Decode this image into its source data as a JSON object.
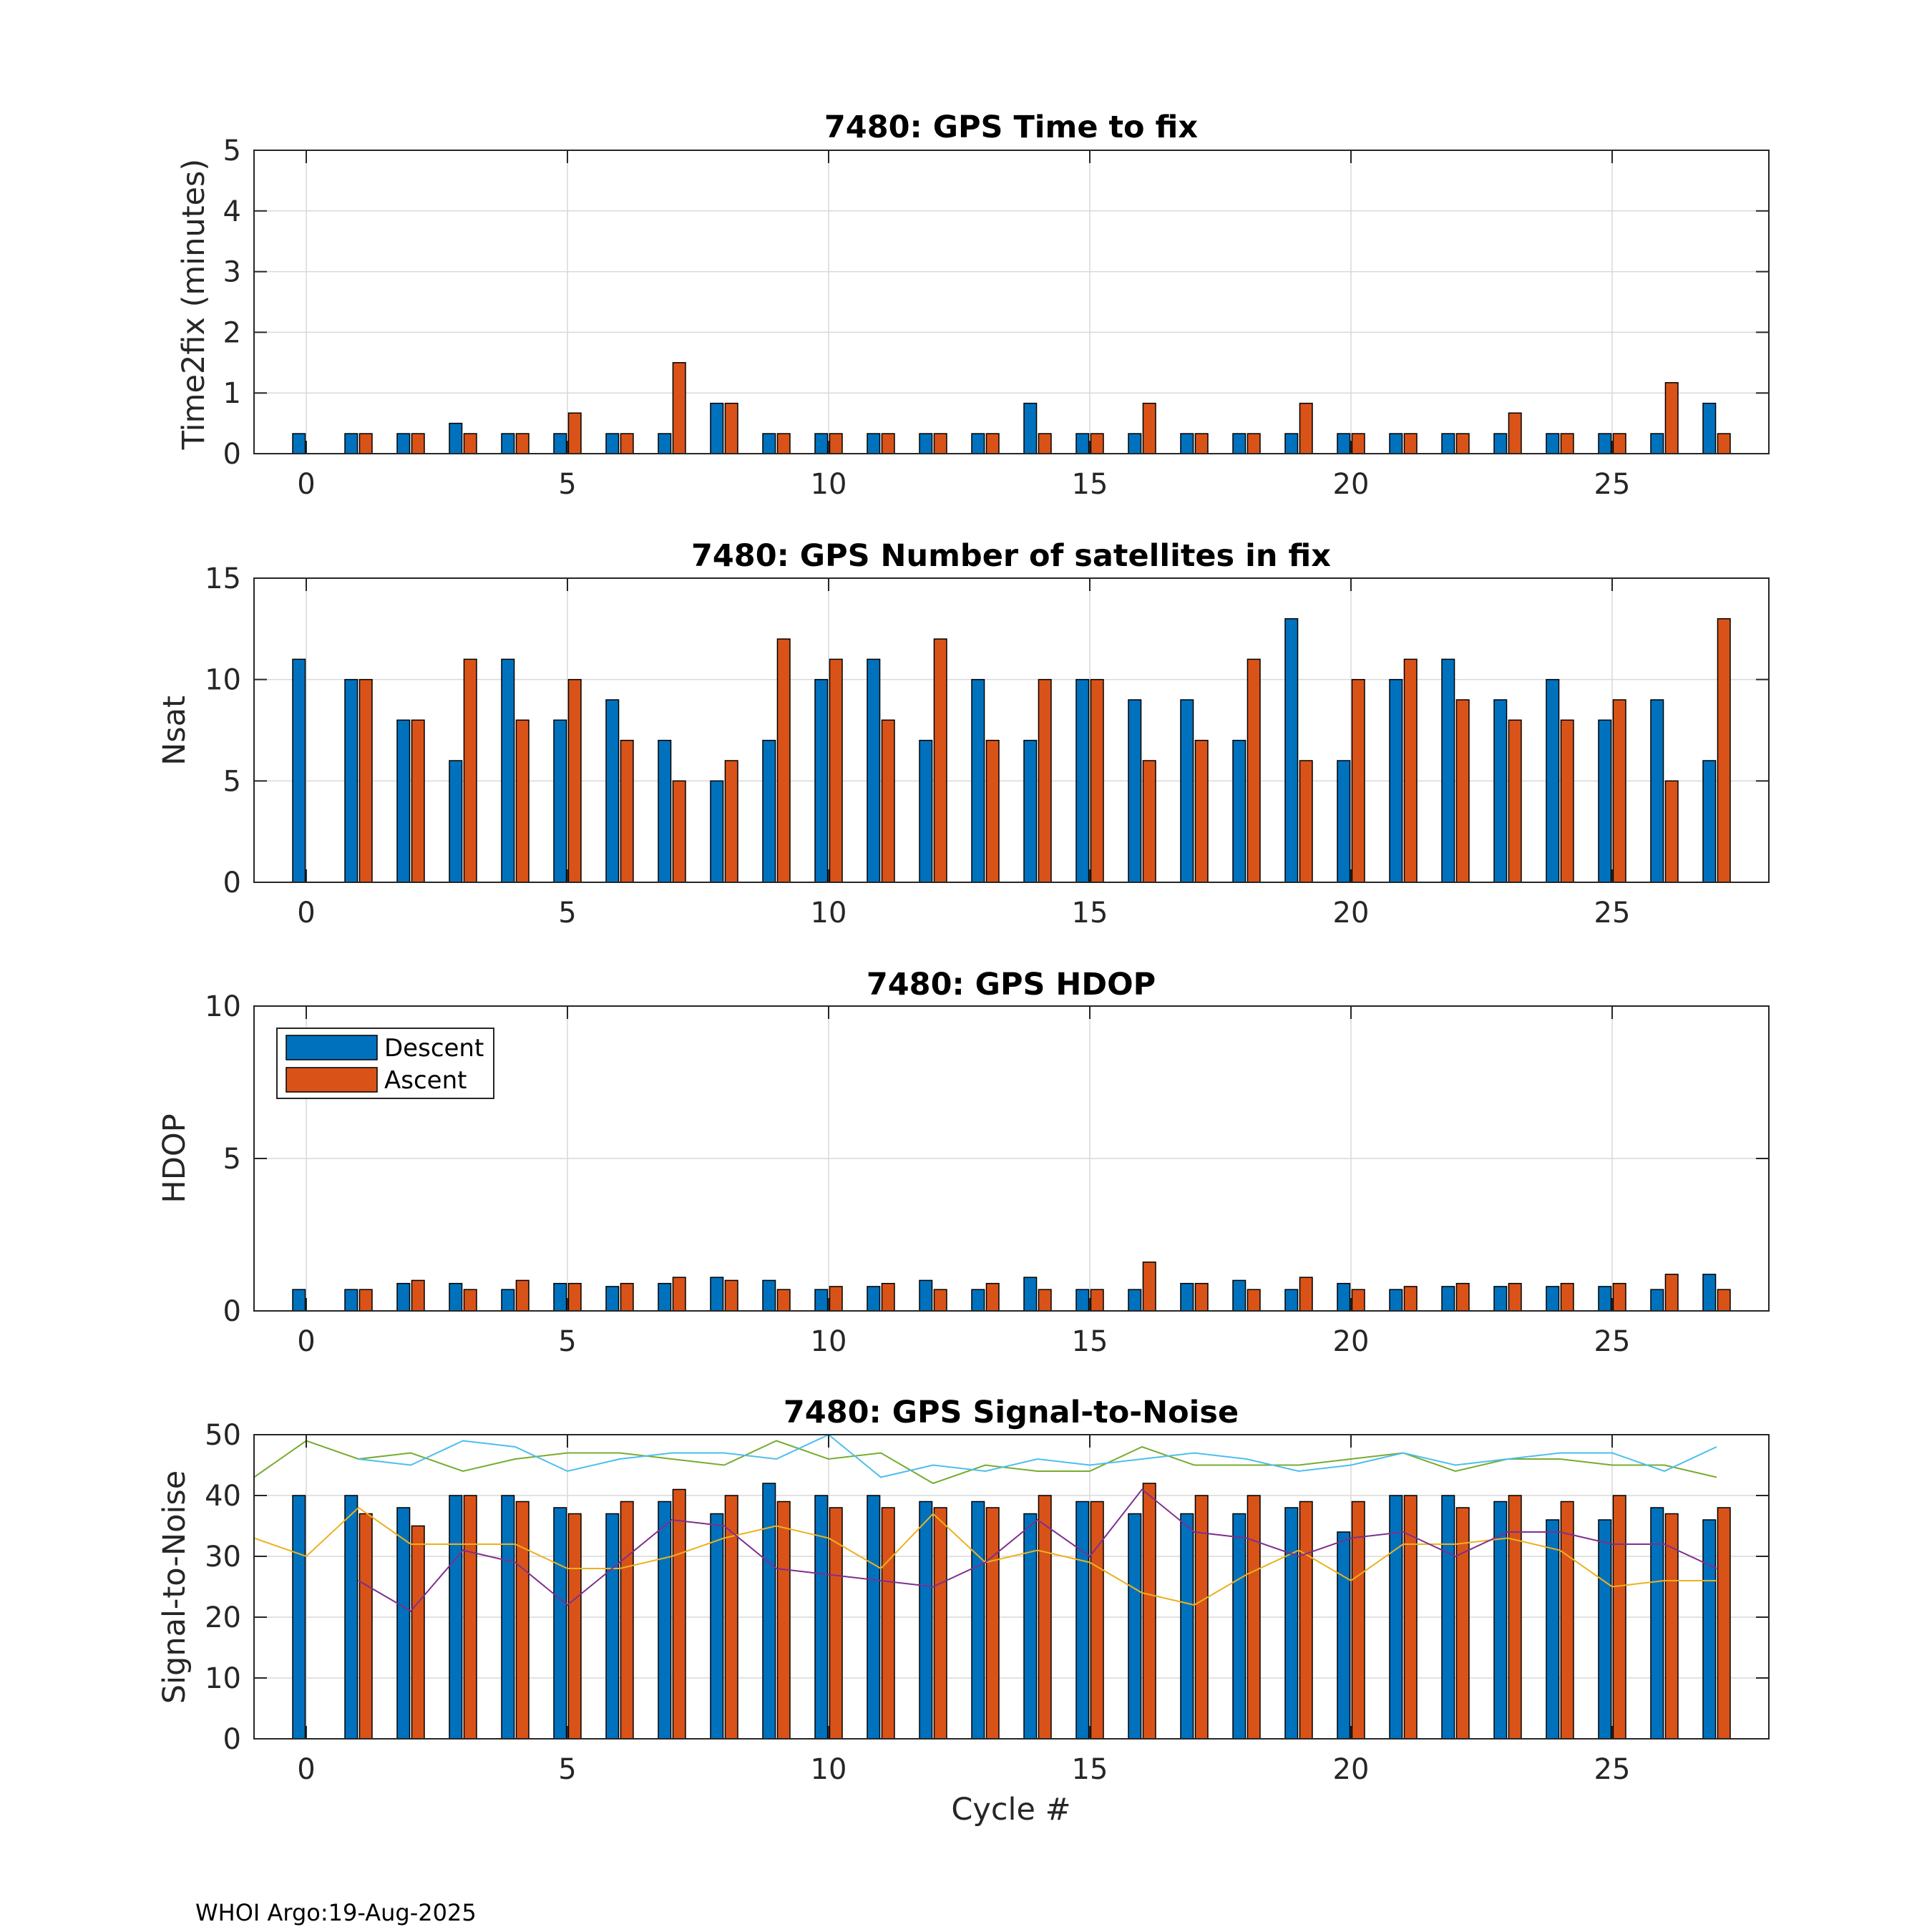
{
  "footer": "WHOI Argo:19-Aug-2025",
  "legend": {
    "descent": "Descent",
    "ascent": "Ascent"
  },
  "colors": {
    "descent": "#0072BD",
    "ascent": "#D95319",
    "snr_lines": [
      "#77AC30",
      "#4DBEEE",
      "#EDB120",
      "#7E2F8E"
    ]
  },
  "chart_data": [
    {
      "type": "bar",
      "title": "7480: GPS Time to fix",
      "xlabel": "",
      "ylabel": "Time2fix (minutes)",
      "xlim": [
        -1,
        28
      ],
      "ylim": [
        0,
        5
      ],
      "xticks": [
        0,
        5,
        10,
        15,
        20,
        25
      ],
      "yticks": [
        0,
        1,
        2,
        3,
        4,
        5
      ],
      "grid": true,
      "categories": [
        0,
        1,
        2,
        3,
        4,
        5,
        6,
        7,
        8,
        9,
        10,
        11,
        12,
        13,
        14,
        15,
        16,
        17,
        18,
        19,
        20,
        21,
        22,
        23,
        24,
        25,
        26,
        27
      ],
      "series": [
        {
          "name": "Descent",
          "values": [
            0.33,
            0.33,
            0.33,
            0.5,
            0.33,
            0.33,
            0.33,
            0.33,
            0.83,
            0.33,
            0.33,
            0.33,
            0.33,
            0.33,
            0.83,
            0.33,
            0.33,
            0.33,
            0.33,
            0.33,
            0.33,
            0.33,
            0.33,
            0.33,
            0.33,
            0.33,
            0.33,
            0.83
          ]
        },
        {
          "name": "Ascent",
          "values": [
            0,
            0.33,
            0.33,
            0.33,
            0.33,
            0.67,
            0.33,
            1.5,
            0.83,
            0.33,
            0.33,
            0.33,
            0.33,
            0.33,
            0.33,
            0.33,
            0.83,
            0.33,
            0.33,
            0.83,
            0.33,
            0.33,
            0.33,
            0.67,
            0.33,
            0.33,
            1.17,
            0.33
          ]
        }
      ]
    },
    {
      "type": "bar",
      "title": "7480: GPS Number of satellites in fix",
      "xlabel": "",
      "ylabel": "Nsat",
      "xlim": [
        -1,
        28
      ],
      "ylim": [
        0,
        15
      ],
      "xticks": [
        0,
        5,
        10,
        15,
        20,
        25
      ],
      "yticks": [
        0,
        5,
        10,
        15
      ],
      "grid": true,
      "categories": [
        0,
        1,
        2,
        3,
        4,
        5,
        6,
        7,
        8,
        9,
        10,
        11,
        12,
        13,
        14,
        15,
        16,
        17,
        18,
        19,
        20,
        21,
        22,
        23,
        24,
        25,
        26,
        27
      ],
      "series": [
        {
          "name": "Descent",
          "values": [
            11,
            10,
            8,
            6,
            11,
            8,
            9,
            7,
            5,
            7,
            10,
            11,
            7,
            10,
            7,
            10,
            9,
            9,
            7,
            13,
            6,
            10,
            11,
            9,
            10,
            8,
            9,
            6
          ]
        },
        {
          "name": "Ascent",
          "values": [
            0,
            10,
            8,
            11,
            8,
            10,
            7,
            5,
            6,
            12,
            11,
            8,
            12,
            7,
            10,
            10,
            6,
            7,
            11,
            6,
            10,
            11,
            9,
            8,
            8,
            9,
            5,
            13
          ]
        }
      ]
    },
    {
      "type": "bar",
      "title": "7480: GPS HDOP",
      "xlabel": "",
      "ylabel": "HDOP",
      "xlim": [
        -1,
        28
      ],
      "ylim": [
        0,
        10
      ],
      "xticks": [
        0,
        5,
        10,
        15,
        20,
        25
      ],
      "yticks": [
        0,
        5,
        10
      ],
      "grid": true,
      "legend": "top-left",
      "categories": [
        0,
        1,
        2,
        3,
        4,
        5,
        6,
        7,
        8,
        9,
        10,
        11,
        12,
        13,
        14,
        15,
        16,
        17,
        18,
        19,
        20,
        21,
        22,
        23,
        24,
        25,
        26,
        27
      ],
      "series": [
        {
          "name": "Descent",
          "values": [
            0.7,
            0.7,
            0.9,
            0.9,
            0.7,
            0.9,
            0.8,
            0.9,
            1.1,
            1.0,
            0.7,
            0.8,
            1.0,
            0.7,
            1.1,
            0.7,
            0.7,
            0.9,
            1.0,
            0.7,
            0.9,
            0.7,
            0.8,
            0.8,
            0.8,
            0.8,
            0.7,
            1.2
          ]
        },
        {
          "name": "Ascent",
          "values": [
            0,
            0.7,
            1.0,
            0.7,
            1.0,
            0.9,
            0.9,
            1.1,
            1.0,
            0.7,
            0.8,
            0.9,
            0.7,
            0.9,
            0.7,
            0.7,
            1.6,
            0.9,
            0.7,
            1.1,
            0.7,
            0.8,
            0.9,
            0.9,
            0.9,
            0.9,
            1.2,
            0.7
          ]
        }
      ]
    },
    {
      "type": "bar",
      "title": "7480: GPS Signal-to-Noise",
      "xlabel": "Cycle #",
      "ylabel": "Signal-to-Noise",
      "xlim": [
        -1,
        28
      ],
      "ylim": [
        0,
        50
      ],
      "xticks": [
        0,
        5,
        10,
        15,
        20,
        25
      ],
      "yticks": [
        0,
        10,
        20,
        30,
        40,
        50
      ],
      "grid": true,
      "categories": [
        0,
        1,
        2,
        3,
        4,
        5,
        6,
        7,
        8,
        9,
        10,
        11,
        12,
        13,
        14,
        15,
        16,
        17,
        18,
        19,
        20,
        21,
        22,
        23,
        24,
        25,
        26,
        27
      ],
      "series": [
        {
          "name": "Descent",
          "values": [
            40,
            40,
            38,
            40,
            40,
            38,
            37,
            39,
            37,
            42,
            40,
            40,
            39,
            39,
            37,
            39,
            37,
            37,
            37,
            38,
            34,
            40,
            40,
            39,
            36,
            36,
            38,
            36
          ]
        },
        {
          "name": "Ascent",
          "values": [
            0,
            37,
            35,
            40,
            39,
            37,
            39,
            41,
            40,
            39,
            38,
            38,
            38,
            38,
            40,
            39,
            42,
            40,
            40,
            39,
            39,
            40,
            38,
            40,
            39,
            40,
            37,
            38
          ]
        }
      ],
      "lines": [
        {
          "x": [
            -1,
            0,
            1,
            2,
            3,
            4,
            5,
            6,
            7,
            8,
            9,
            10,
            11,
            12,
            13,
            14,
            15,
            16,
            17,
            18,
            19,
            20,
            21,
            22,
            23,
            24,
            25,
            26,
            27
          ],
          "values": [
            43,
            49,
            46,
            47,
            44,
            46,
            47,
            47,
            46,
            45,
            49,
            46,
            47,
            42,
            45,
            44,
            44,
            48,
            45,
            45,
            45,
            46,
            47,
            44,
            46,
            46,
            45,
            45,
            43
          ]
        },
        {
          "x": [
            1,
            2,
            3,
            4,
            5,
            6,
            7,
            8,
            9,
            10,
            11,
            12,
            13,
            14,
            15,
            16,
            17,
            18,
            19,
            20,
            21,
            22,
            23,
            24,
            25,
            26,
            27
          ],
          "values": [
            46,
            45,
            49,
            48,
            44,
            46,
            47,
            47,
            46,
            50,
            43,
            45,
            44,
            46,
            45,
            46,
            47,
            46,
            44,
            45,
            47,
            45,
            46,
            47,
            47,
            44,
            48
          ]
        },
        {
          "x": [
            -1,
            0,
            1,
            2,
            3,
            4,
            5,
            6,
            7,
            8,
            9,
            10,
            11,
            12,
            13,
            14,
            15,
            16,
            17,
            18,
            19,
            20,
            21,
            22,
            23,
            24,
            25,
            26,
            27
          ],
          "values": [
            33,
            30,
            38,
            32,
            32,
            32,
            28,
            28,
            30,
            33,
            35,
            33,
            28,
            37,
            29,
            31,
            29,
            24,
            22,
            27,
            31,
            26,
            32,
            32,
            33,
            31,
            25,
            26,
            26
          ]
        },
        {
          "x": [
            1,
            2,
            3,
            4,
            5,
            6,
            7,
            8,
            9,
            10,
            11,
            12,
            13,
            14,
            15,
            16,
            17,
            18,
            19,
            20,
            21,
            22,
            23,
            24,
            25,
            26,
            27
          ],
          "values": [
            26,
            21,
            31,
            29,
            22,
            29,
            36,
            35,
            28,
            27,
            26,
            25,
            29,
            36,
            30,
            41,
            34,
            33,
            30,
            33,
            34,
            30,
            34,
            34,
            32,
            32,
            28
          ]
        }
      ]
    }
  ]
}
